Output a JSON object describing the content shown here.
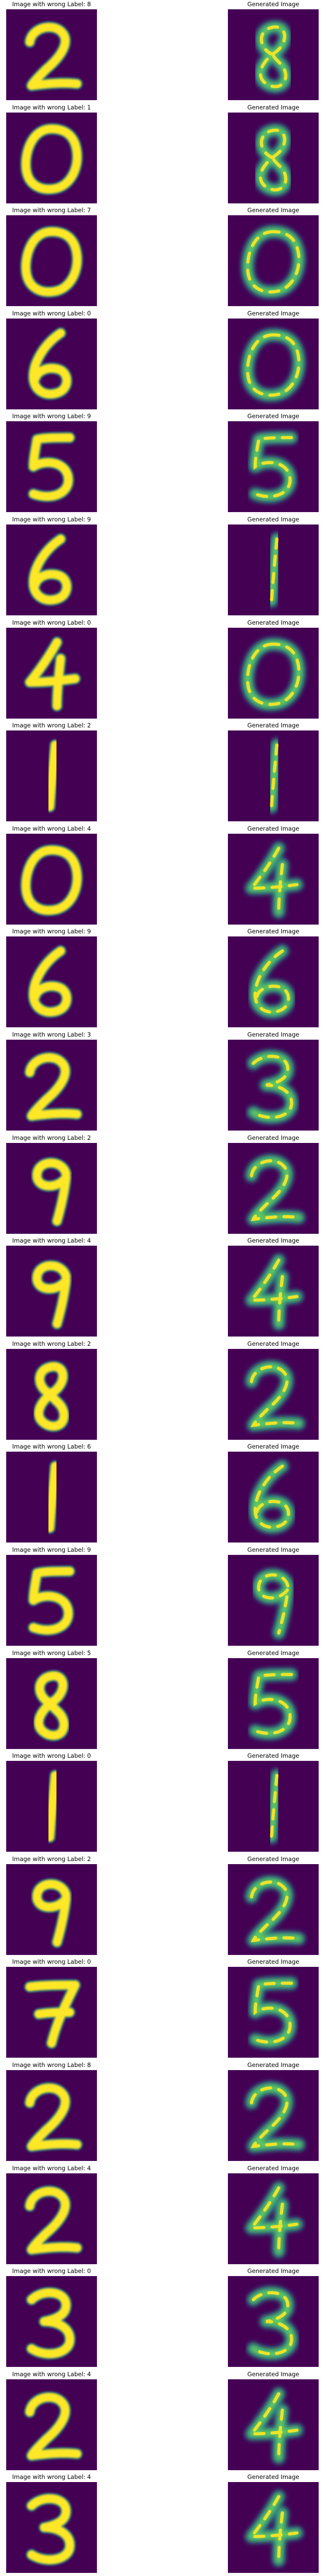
{
  "figure": {
    "generated_title": "Generated Image",
    "colormap": {
      "background": "#440154",
      "mid": "#21918c",
      "high": "#5ec962",
      "peak": "#fde725"
    },
    "rows": [
      {
        "title": "Image with wrong Label: 8",
        "original_digit": "2",
        "generated_digit": "8"
      },
      {
        "title": "Image with wrong Label: 1",
        "original_digit": "0",
        "generated_digit": "8"
      },
      {
        "title": "Image with wrong Label: 7",
        "original_digit": "0",
        "generated_digit": "0"
      },
      {
        "title": "Image with wrong Label: 0",
        "original_digit": "6",
        "generated_digit": "0"
      },
      {
        "title": "Image with wrong Label: 9",
        "original_digit": "5",
        "generated_digit": "5"
      },
      {
        "title": "Image with wrong Label: 9",
        "original_digit": "6",
        "generated_digit": "1"
      },
      {
        "title": "Image with wrong Label: 0",
        "original_digit": "4",
        "generated_digit": "0"
      },
      {
        "title": "Image with wrong Label: 2",
        "original_digit": "1",
        "generated_digit": "1"
      },
      {
        "title": "Image with wrong Label: 4",
        "original_digit": "0",
        "generated_digit": "4"
      },
      {
        "title": "Image with wrong Label: 9",
        "original_digit": "6",
        "generated_digit": "6"
      },
      {
        "title": "Image with wrong Label: 3",
        "original_digit": "2",
        "generated_digit": "3"
      },
      {
        "title": "Image with wrong Label: 2",
        "original_digit": "9",
        "generated_digit": "2"
      },
      {
        "title": "Image with wrong Label: 4",
        "original_digit": "9",
        "generated_digit": "4"
      },
      {
        "title": "Image with wrong Label: 2",
        "original_digit": "8",
        "generated_digit": "2"
      },
      {
        "title": "Image with wrong Label: 6",
        "original_digit": "1",
        "generated_digit": "6"
      },
      {
        "title": "Image with wrong Label: 9",
        "original_digit": "5",
        "generated_digit": "9"
      },
      {
        "title": "Image with wrong Label: 5",
        "original_digit": "8",
        "generated_digit": "5"
      },
      {
        "title": "Image with wrong Label: 0",
        "original_digit": "1",
        "generated_digit": "1"
      },
      {
        "title": "Image with wrong Label: 2",
        "original_digit": "9",
        "generated_digit": "2"
      },
      {
        "title": "Image with wrong Label: 0",
        "original_digit": "7",
        "generated_digit": "5"
      },
      {
        "title": "Image with wrong Label: 8",
        "original_digit": "2",
        "generated_digit": "2"
      },
      {
        "title": "Image with wrong Label: 4",
        "original_digit": "2",
        "generated_digit": "4"
      },
      {
        "title": "Image with wrong Label: 0",
        "original_digit": "3",
        "generated_digit": "3"
      },
      {
        "title": "Image with wrong Label: 4",
        "original_digit": "2",
        "generated_digit": "4"
      },
      {
        "title": "Image with wrong Label: 4",
        "original_digit": "3",
        "generated_digit": "4"
      }
    ]
  }
}
